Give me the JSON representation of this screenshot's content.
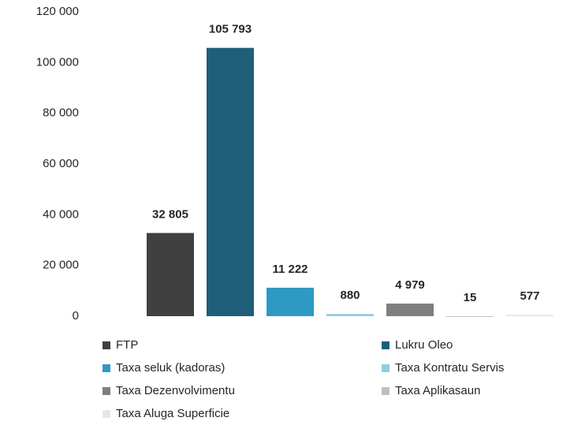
{
  "chart_data": {
    "type": "bar",
    "series": [
      {
        "name": "FTP",
        "color": "#404040",
        "values": [
          32805
        ],
        "value_labels": [
          "32 805"
        ]
      },
      {
        "name": "Lukru Oleo",
        "color": "#1f5f7a",
        "values": [
          105793
        ],
        "value_labels": [
          "105 793"
        ]
      },
      {
        "name": "Taxa seluk (kadoras)",
        "color": "#2e9ac4",
        "values": [
          11222
        ],
        "value_labels": [
          "11 222"
        ]
      },
      {
        "name": "Taxa Kontratu Servis",
        "color": "#8fcde3",
        "values": [
          880
        ],
        "value_labels": [
          "880"
        ]
      },
      {
        "name": "Taxa Dezenvolvimentu",
        "color": "#7f7f7f",
        "values": [
          4979
        ],
        "value_labels": [
          "4 979"
        ]
      },
      {
        "name": "Taxa Aplikasaun",
        "color": "#bfbfbf",
        "values": [
          15
        ]
      },
      {
        "name": "Taxa Aluga Superficie",
        "color": "#e6e6e6",
        "values": [
          577
        ]
      }
    ],
    "ylim": [
      0,
      120000
    ],
    "yticks": [
      0,
      {
        "value": 20000,
        "label": "20 000"
      },
      {
        "value": 40000,
        "label": "40 000"
      },
      {
        "value": 60000,
        "label": "60 000"
      },
      {
        "value": 80000,
        "label": "80 000"
      },
      {
        "value": 100000,
        "label": "100 000"
      },
      {
        "value": 120000,
        "label": "120 000"
      }
    ]
  }
}
